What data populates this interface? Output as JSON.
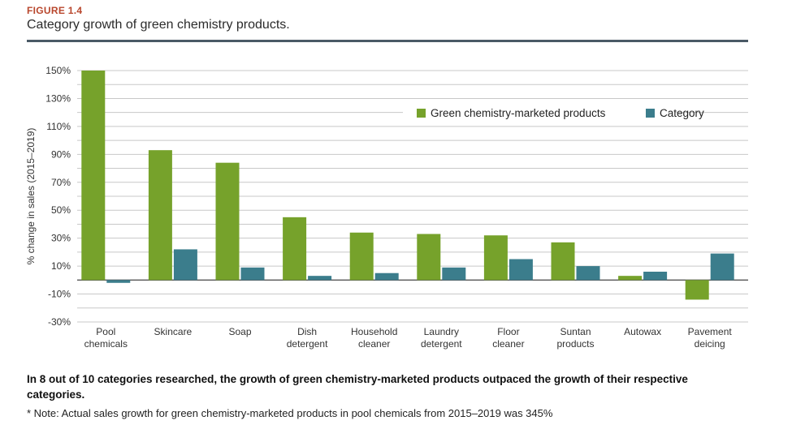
{
  "figure": {
    "label": "FIGURE 1.4",
    "title": "Category growth of green chemistry products."
  },
  "caption": "In 8 out of 10 categories researched, the growth of green chemistry-marketed products outpaced the growth of their respective categories.",
  "note": "* Note: Actual sales growth for green chemistry-marketed products in pool chemicals from 2015–2019 was 345%",
  "colors": {
    "green": "#76a22b",
    "category": "#3b7d8c",
    "grid": "#c8c8c8",
    "axis": "#555555"
  },
  "chart_data": {
    "type": "bar",
    "ylabel": "% change in sales (2015–2019)",
    "ylim": [
      -30,
      150
    ],
    "yticks": [
      -30,
      -10,
      10,
      30,
      50,
      70,
      90,
      110,
      130,
      150
    ],
    "ytick_labels": [
      "-30%",
      "-10%",
      "10%",
      "30%",
      "50%",
      "70%",
      "90%",
      "110%",
      "130%",
      "150%"
    ],
    "grid": true,
    "legend_position": "top-right",
    "categories": [
      [
        "Pool",
        "chemicals"
      ],
      [
        "Skincare"
      ],
      [
        "Soap"
      ],
      [
        "Dish",
        "detergent"
      ],
      [
        "Household",
        "cleaner"
      ],
      [
        "Laundry",
        "detergent"
      ],
      [
        "Floor",
        "cleaner"
      ],
      [
        "Suntan",
        "products"
      ],
      [
        "Autowax"
      ],
      [
        "Pavement",
        "deicing"
      ]
    ],
    "series": [
      {
        "name": "Green chemistry-marketed products",
        "values": [
          150,
          93,
          84,
          45,
          34,
          33,
          32,
          27,
          3,
          -14
        ]
      },
      {
        "name": "Category",
        "values": [
          -2,
          22,
          9,
          3,
          5,
          9,
          15,
          10,
          6,
          19
        ]
      }
    ]
  }
}
